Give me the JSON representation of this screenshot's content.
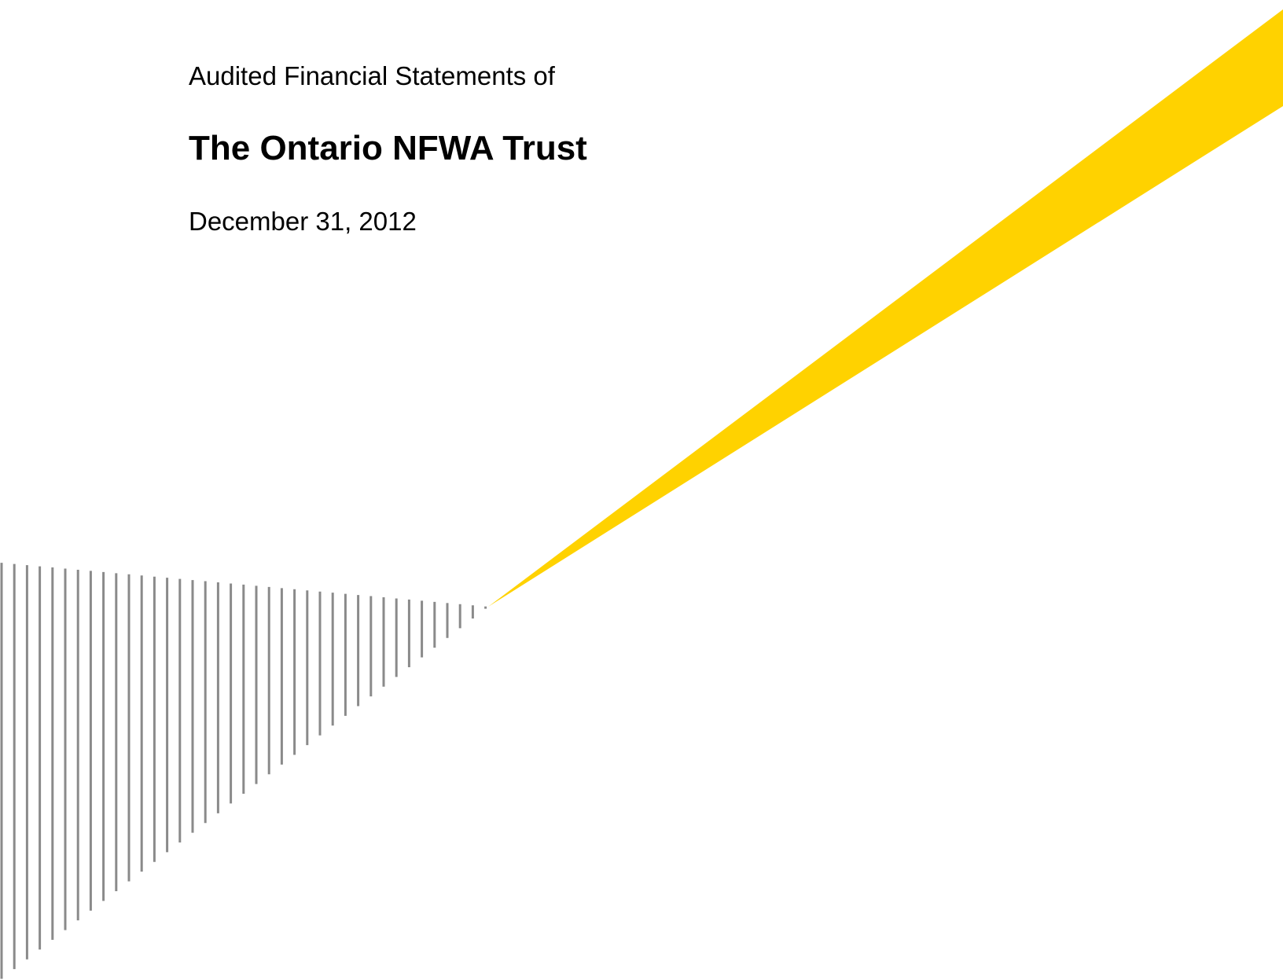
{
  "header": {
    "subtitle": "Audited Financial Statements of",
    "title": "The Ontario NFWA Trust",
    "date": "December 31, 2012"
  }
}
